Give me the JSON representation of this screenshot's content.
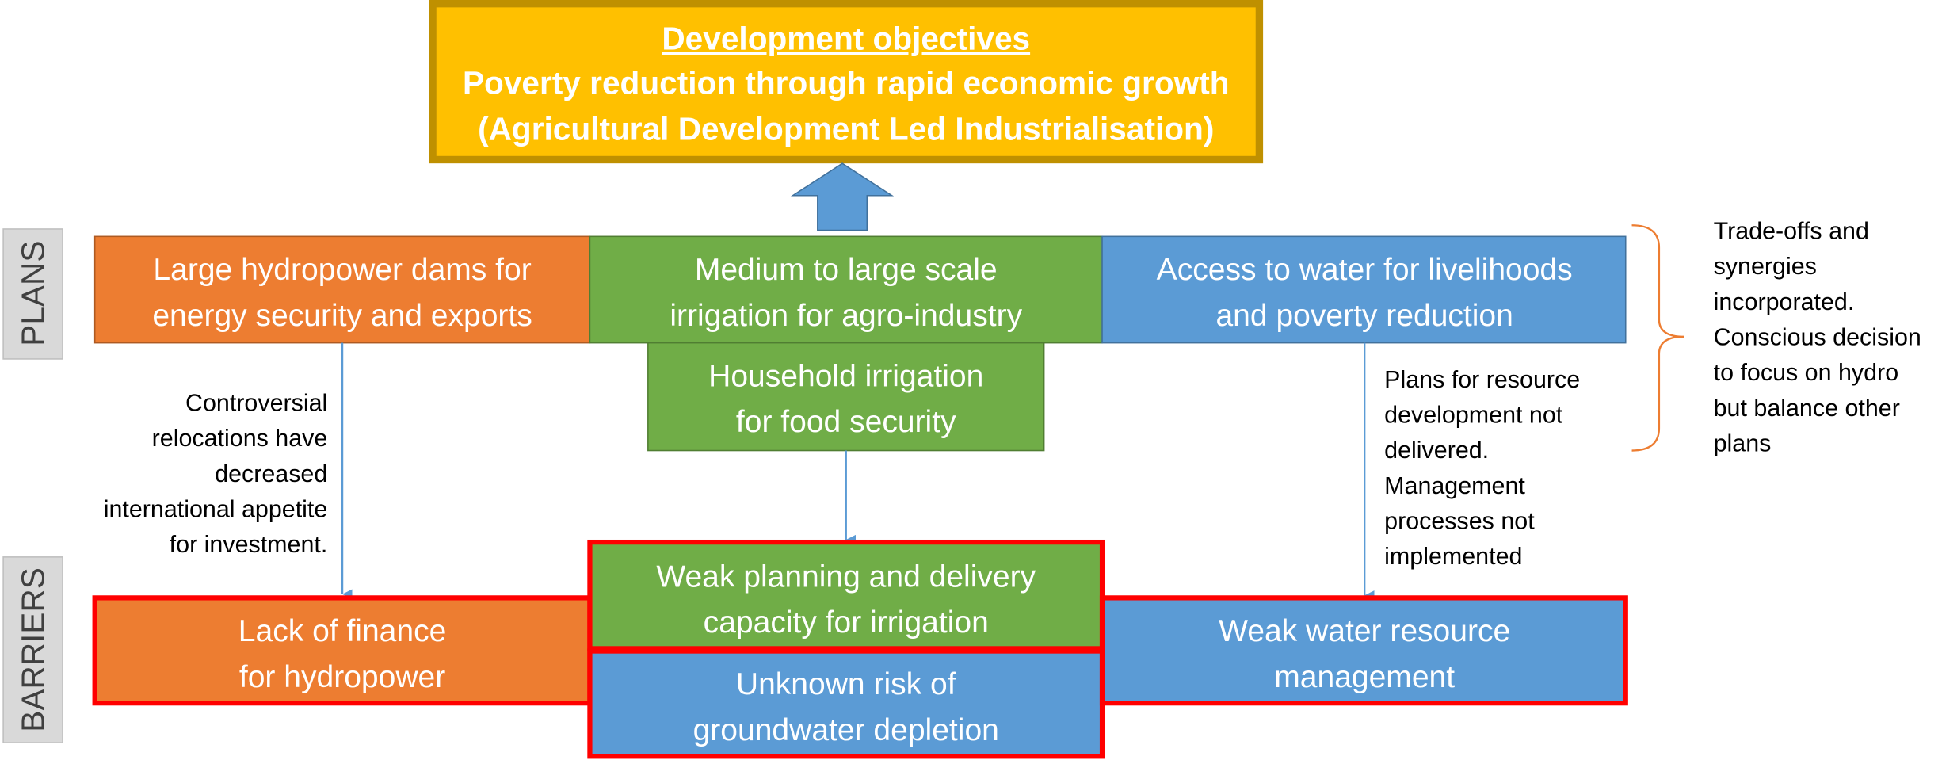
{
  "header": {
    "title": "Development objectives",
    "lines": [
      "Poverty reduction through rapid economic growth",
      "(Agricultural Development Led Industrialisation)"
    ]
  },
  "side_labels": {
    "plans": "PLANS",
    "barriers": "BARRIERS"
  },
  "plans": [
    {
      "lines": [
        "Large hydropower dams for",
        "energy security and exports"
      ]
    },
    {
      "lines": [
        "Medium to large scale",
        "irrigation for agro-industry"
      ]
    },
    {
      "lines": [
        "Access to water for livelihoods",
        "and poverty reduction"
      ]
    },
    {
      "lines": [
        "Household irrigation",
        "for food security"
      ]
    }
  ],
  "barriers": [
    {
      "lines": [
        "Lack of finance",
        "for hydropower"
      ]
    },
    {
      "lines": [
        "Weak planning and delivery",
        "capacity for irrigation"
      ]
    },
    {
      "lines": [
        "Unknown risk of",
        "groundwater depletion"
      ]
    },
    {
      "lines": [
        "Weak water resource",
        "management"
      ]
    }
  ],
  "notes": {
    "left": [
      "Controversial",
      "relocations have",
      "decreased",
      "international appetite",
      "for investment."
    ],
    "middle": [
      "Plans for resource",
      "development not",
      "delivered.",
      "Management",
      "processes not",
      "implemented"
    ],
    "right": [
      "Trade-offs and",
      "synergies",
      "incorporated.",
      "Conscious decision",
      "to focus on hydro",
      "but balance other",
      "plans"
    ]
  }
}
